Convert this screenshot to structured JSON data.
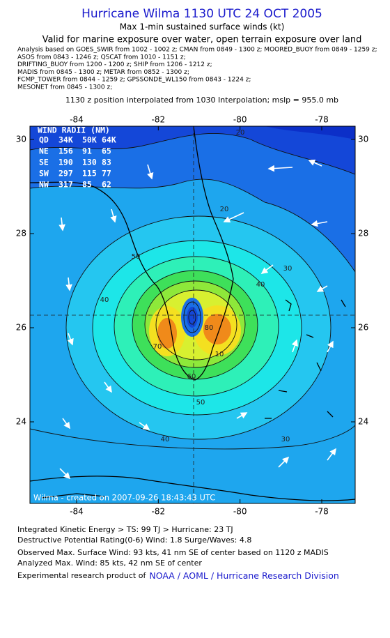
{
  "header": {
    "title": "Hurricane Wilma 1130 UTC 24 OCT 2005",
    "subtitle": "Max 1-min sustained surface winds (kt)",
    "valid": "Valid for marine exposure over water, open terrain exposure over land"
  },
  "analysis": [
    "Analysis based on  GOES_SWIR from 1002 - 1002 z;  CMAN from 0849 - 1300 z;  MOORED_BUOY from 0849 - 1259 z;",
    "ASOS from 0843 - 1246 z;  QSCAT from 1010 - 1151 z;",
    "DRIFTING_BUOY from 1200 - 1200 z;  SHIP from 1206 - 1212 z;",
    "MADIS from 0845 - 1300 z;  METAR from 0852 - 1300 z;",
    "FCMP_TOWER from 0844 - 1259 z;  GPSSONDE_WL150 from 0843 - 1224 z;",
    "MESONET from 0845 - 1300 z;"
  ],
  "interpolation": "1130 z position interpolated from 1030 Interpolation; mslp = 955.0 mb",
  "map": {
    "xticks": [
      -84,
      -82,
      -80,
      -78
    ],
    "yticks": [
      30,
      28,
      26,
      24
    ],
    "wind_radii": {
      "title": "WIND RADII (NM)",
      "rows": [
        [
          "QD",
          "34K",
          "50K",
          "64K"
        ],
        [
          "NE",
          156,
          91,
          65
        ],
        [
          "SE",
          190,
          130,
          83
        ],
        [
          "SW",
          297,
          115,
          77
        ],
        [
          "NW",
          317,
          85,
          62
        ]
      ]
    },
    "contour_labels": [
      20,
      20,
      30,
      30,
      40,
      40,
      40,
      50,
      50,
      60,
      70,
      80,
      10
    ],
    "credit": "Wilma - created on 2007-09-26 18:43:43 UTC"
  },
  "footer": {
    "ike": "Integrated Kinetic Energy > TS: 99 TJ   > Hurricane: 23 TJ",
    "dpr": "Destructive Potential Rating(0-6)   Wind: 1.8 Surge/Waves: 4.8",
    "observed": "Observed Max. Surface Wind: 93 kts, 41 nm SE of center based on 1120 z MADIS",
    "analyzed": "Analyzed Max. Wind: 85 kts, 42 nm SE of center",
    "product": "Experimental research product of",
    "org": "NOAA / AOML / Hurricane Research Division"
  }
}
